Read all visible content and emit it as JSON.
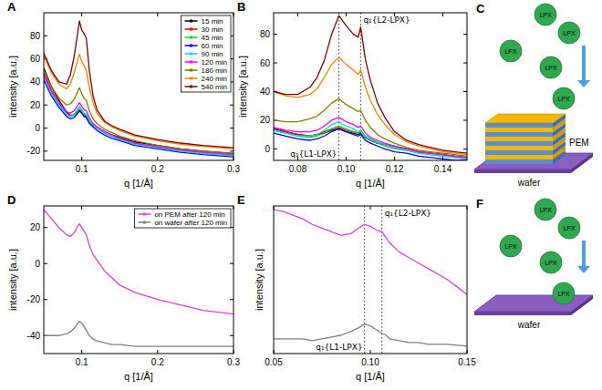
{
  "chart_data": [
    {
      "panel": "A",
      "type": "line",
      "x_label": "q [1/Å]",
      "y_label": "intensity [a.u.]",
      "x": [
        0.05,
        0.06,
        0.07,
        0.08,
        0.085,
        0.09,
        0.095,
        0.097,
        0.1,
        0.103,
        0.106,
        0.11,
        0.115,
        0.12,
        0.13,
        0.14,
        0.15,
        0.17,
        0.2,
        0.23,
        0.26,
        0.3
      ],
      "xlim": [
        0.05,
        0.3
      ],
      "xticks": [
        0.1,
        0.2,
        0.3
      ],
      "ylim": [
        -28,
        100
      ],
      "yticks": [
        -20,
        0,
        20,
        40,
        60,
        80
      ],
      "legend": "top-right",
      "series": [
        {
          "name": "15 min",
          "color": "#000000",
          "values": [
            52,
            36,
            24,
            14,
            11,
            11,
            14,
            15,
            13,
            11,
            10,
            6,
            3,
            1,
            -3,
            -6,
            -8,
            -12,
            -15,
            -18,
            -20,
            -22
          ]
        },
        {
          "name": "30 min",
          "color": "#ff0000",
          "values": [
            48,
            33,
            22,
            13,
            11,
            12,
            15,
            16,
            14,
            12,
            11,
            6,
            3,
            0,
            -4,
            -7,
            -9,
            -13,
            -16,
            -19,
            -21,
            -23
          ]
        },
        {
          "name": "45 min",
          "color": "#22cc22",
          "values": [
            45,
            30,
            20,
            12,
            10,
            11,
            15,
            17,
            15,
            12,
            11,
            6,
            2,
            0,
            -4,
            -7,
            -10,
            -14,
            -17,
            -20,
            -22,
            -24
          ]
        },
        {
          "name": "60 min",
          "color": "#0000ff",
          "values": [
            42,
            28,
            18,
            10,
            8,
            9,
            13,
            15,
            13,
            10,
            9,
            4,
            1,
            -2,
            -6,
            -9,
            -11,
            -15,
            -18,
            -21,
            -23,
            -25
          ]
        },
        {
          "name": "90 min",
          "color": "#00d8f0",
          "values": [
            44,
            30,
            20,
            12,
            10,
            12,
            17,
            19,
            16,
            13,
            12,
            7,
            3,
            0,
            -4,
            -7,
            -10,
            -14,
            -17,
            -20,
            -22,
            -24
          ]
        },
        {
          "name": "120 min",
          "color": "#ff00ff",
          "values": [
            46,
            32,
            22,
            14,
            13,
            15,
            20,
            22,
            19,
            16,
            15,
            9,
            4,
            1,
            -3,
            -6,
            -9,
            -13,
            -16,
            -19,
            -21,
            -23
          ]
        },
        {
          "name": "180 min",
          "color": "#808000",
          "values": [
            50,
            36,
            26,
            20,
            21,
            25,
            32,
            35,
            30,
            26,
            24,
            15,
            8,
            4,
            -1,
            -4,
            -7,
            -11,
            -15,
            -18,
            -20,
            -22
          ]
        },
        {
          "name": "240 min",
          "color": "#ff8000",
          "values": [
            62,
            48,
            38,
            34,
            38,
            48,
            60,
            64,
            58,
            54,
            50,
            35,
            22,
            13,
            5,
            1,
            -2,
            -7,
            -11,
            -14,
            -16,
            -18
          ]
        },
        {
          "name": "540 min",
          "color": "#800000",
          "values": [
            65,
            50,
            40,
            38,
            46,
            62,
            84,
            93,
            85,
            82,
            78,
            50,
            28,
            16,
            6,
            2,
            -1,
            -6,
            -10,
            -13,
            -15,
            -17
          ]
        }
      ]
    },
    {
      "panel": "B",
      "type": "line",
      "x_label": "q [1/Å]",
      "y_label": "intensity [a.u.]",
      "x": [
        0.07,
        0.075,
        0.08,
        0.085,
        0.088,
        0.091,
        0.094,
        0.097,
        0.1,
        0.103,
        0.105,
        0.106,
        0.108,
        0.11,
        0.113,
        0.116,
        0.12,
        0.125,
        0.13,
        0.135,
        0.14,
        0.145,
        0.15
      ],
      "xlim": [
        0.07,
        0.15
      ],
      "xticks": [
        0.08,
        {
          "value": 0.1,
          "label": "0.10"
        },
        0.12,
        0.14
      ],
      "ylim": [
        -8,
        95
      ],
      "yticks": [
        0,
        20,
        40,
        60,
        80
      ],
      "annotations": [
        {
          "text": "q₁{L1-LPX}",
          "x": 0.097
        },
        {
          "text": "q₁{L2-LPX}",
          "x": 0.106
        }
      ],
      "series": [
        {
          "name": "15 min",
          "color": "#000000",
          "values": [
            14,
            12,
            10,
            9,
            10,
            11,
            13,
            14,
            12,
            11,
            10,
            11,
            8,
            6,
            4,
            3,
            2,
            0,
            -2,
            -3,
            -4,
            -5,
            -6
          ]
        },
        {
          "name": "30 min",
          "color": "#ff0000",
          "values": [
            15,
            12,
            10,
            9,
            10,
            12,
            14,
            15,
            13,
            12,
            11,
            12,
            8,
            6,
            4,
            3,
            1,
            0,
            -2,
            -3,
            -4,
            -5,
            -6
          ]
        },
        {
          "name": "45 min",
          "color": "#22cc22",
          "values": [
            13,
            11,
            9,
            8,
            9,
            11,
            14,
            16,
            14,
            12,
            11,
            12,
            8,
            6,
            4,
            2,
            0,
            -1,
            -3,
            -4,
            -5,
            -6,
            -7
          ]
        },
        {
          "name": "60 min",
          "color": "#0000ff",
          "values": [
            11,
            9,
            7,
            6,
            7,
            9,
            12,
            14,
            12,
            10,
            9,
            10,
            6,
            4,
            2,
            0,
            -2,
            -3,
            -5,
            -6,
            -7,
            -8,
            -8
          ]
        },
        {
          "name": "90 min",
          "color": "#00d8f0",
          "values": [
            13,
            11,
            9,
            9,
            10,
            13,
            17,
            19,
            16,
            14,
            12,
            13,
            9,
            7,
            5,
            3,
            1,
            -1,
            -3,
            -4,
            -5,
            -6,
            -7
          ]
        },
        {
          "name": "120 min",
          "color": "#ff00ff",
          "values": [
            15,
            13,
            12,
            12,
            13,
            16,
            20,
            22,
            19,
            17,
            15,
            16,
            11,
            8,
            6,
            4,
            2,
            0,
            -2,
            -3,
            -4,
            -5,
            -6
          ]
        },
        {
          "name": "180 min",
          "color": "#808000",
          "values": [
            20,
            19,
            19,
            21,
            23,
            27,
            32,
            35,
            31,
            28,
            26,
            27,
            20,
            15,
            10,
            7,
            4,
            1,
            -1,
            -2,
            -3,
            -4,
            -5
          ]
        },
        {
          "name": "240 min",
          "color": "#ff8000",
          "values": [
            40,
            37,
            36,
            38,
            42,
            50,
            59,
            64,
            59,
            55,
            52,
            55,
            43,
            34,
            24,
            17,
            10,
            5,
            2,
            0,
            -2,
            -3,
            -4
          ]
        },
        {
          "name": "540 min",
          "color": "#800000",
          "values": [
            40,
            38,
            38,
            43,
            50,
            62,
            80,
            93,
            86,
            80,
            78,
            85,
            62,
            48,
            32,
            22,
            12,
            6,
            3,
            1,
            -1,
            -2,
            -3
          ]
        }
      ]
    },
    {
      "panel": "D",
      "type": "line",
      "x_label": "q [1/Å]",
      "y_label": "intensity [a.u.]",
      "x": [
        0.05,
        0.06,
        0.07,
        0.08,
        0.085,
        0.09,
        0.095,
        0.097,
        0.1,
        0.103,
        0.106,
        0.11,
        0.115,
        0.12,
        0.13,
        0.14,
        0.15,
        0.17,
        0.2,
        0.23,
        0.26,
        0.3
      ],
      "xlim": [
        0.05,
        0.3
      ],
      "xticks": [
        0.1,
        0.2,
        0.3
      ],
      "ylim": [
        -50,
        32
      ],
      "yticks": [
        -40,
        -20,
        0,
        20
      ],
      "legend": "top-right",
      "series": [
        {
          "name": "on PEM after 120 min",
          "color": "#e040e0",
          "values": [
            30,
            25,
            20,
            16,
            15,
            17,
            21,
            22,
            20,
            18,
            16,
            10,
            5,
            2,
            -4,
            -8,
            -12,
            -16,
            -20,
            -23,
            -26,
            -28
          ]
        },
        {
          "name": "on wafer after 120 min",
          "color": "#808080",
          "values": [
            -40,
            -40,
            -40,
            -39,
            -38,
            -36,
            -33,
            -32,
            -33,
            -35,
            -37,
            -40,
            -42,
            -43,
            -44,
            -45,
            -45,
            -46,
            -46,
            -46,
            -46,
            -46
          ]
        }
      ]
    },
    {
      "panel": "E",
      "type": "line",
      "x_label": "q [1/Å]",
      "y_label": "intensity [a.u.]",
      "tick_labels": "x",
      "x": [
        0.05,
        0.055,
        0.06,
        0.065,
        0.07,
        0.075,
        0.08,
        0.085,
        0.09,
        0.094,
        0.097,
        0.1,
        0.103,
        0.106,
        0.108,
        0.11,
        0.115,
        0.12,
        0.125,
        0.13,
        0.14,
        0.15
      ],
      "xlim": [
        0.05,
        0.15
      ],
      "xticks": [
        0.05,
        {
          "value": 0.1,
          "label": "0.10"
        },
        0.15
      ],
      "ylim": [
        -48,
        32
      ],
      "annotations": [
        {
          "text": "q₁{L1-LPX}",
          "x": 0.097
        },
        {
          "text": "q₁{L2-LPX}",
          "x": 0.106
        }
      ],
      "series": [
        {
          "name": "on PEM after 120 min",
          "color": "#e040e0",
          "values": [
            30,
            29,
            27,
            25,
            22,
            20,
            18,
            16,
            17,
            20,
            22,
            21,
            19,
            18,
            15,
            12,
            7,
            4,
            1,
            -2,
            -8,
            -16
          ]
        },
        {
          "name": "on wafer after 120 min",
          "color": "#808080",
          "values": [
            -40,
            -40,
            -40,
            -40,
            -41,
            -40,
            -39,
            -38,
            -36,
            -34,
            -32,
            -33,
            -35,
            -37,
            -38,
            -40,
            -41,
            -42,
            -42,
            -43,
            -43,
            -44
          ]
        }
      ]
    }
  ],
  "diagrams": [
    {
      "panel": "C",
      "particles": [
        "LPX",
        "LPX",
        "LPX",
        "LPX",
        "LPX"
      ],
      "layers": [
        "PEM",
        "wafer"
      ]
    },
    {
      "panel": "F",
      "particles": [
        "LPX",
        "LPX",
        "LPX",
        "LPX",
        "LPX"
      ],
      "layers": [
        "wafer"
      ]
    }
  ]
}
